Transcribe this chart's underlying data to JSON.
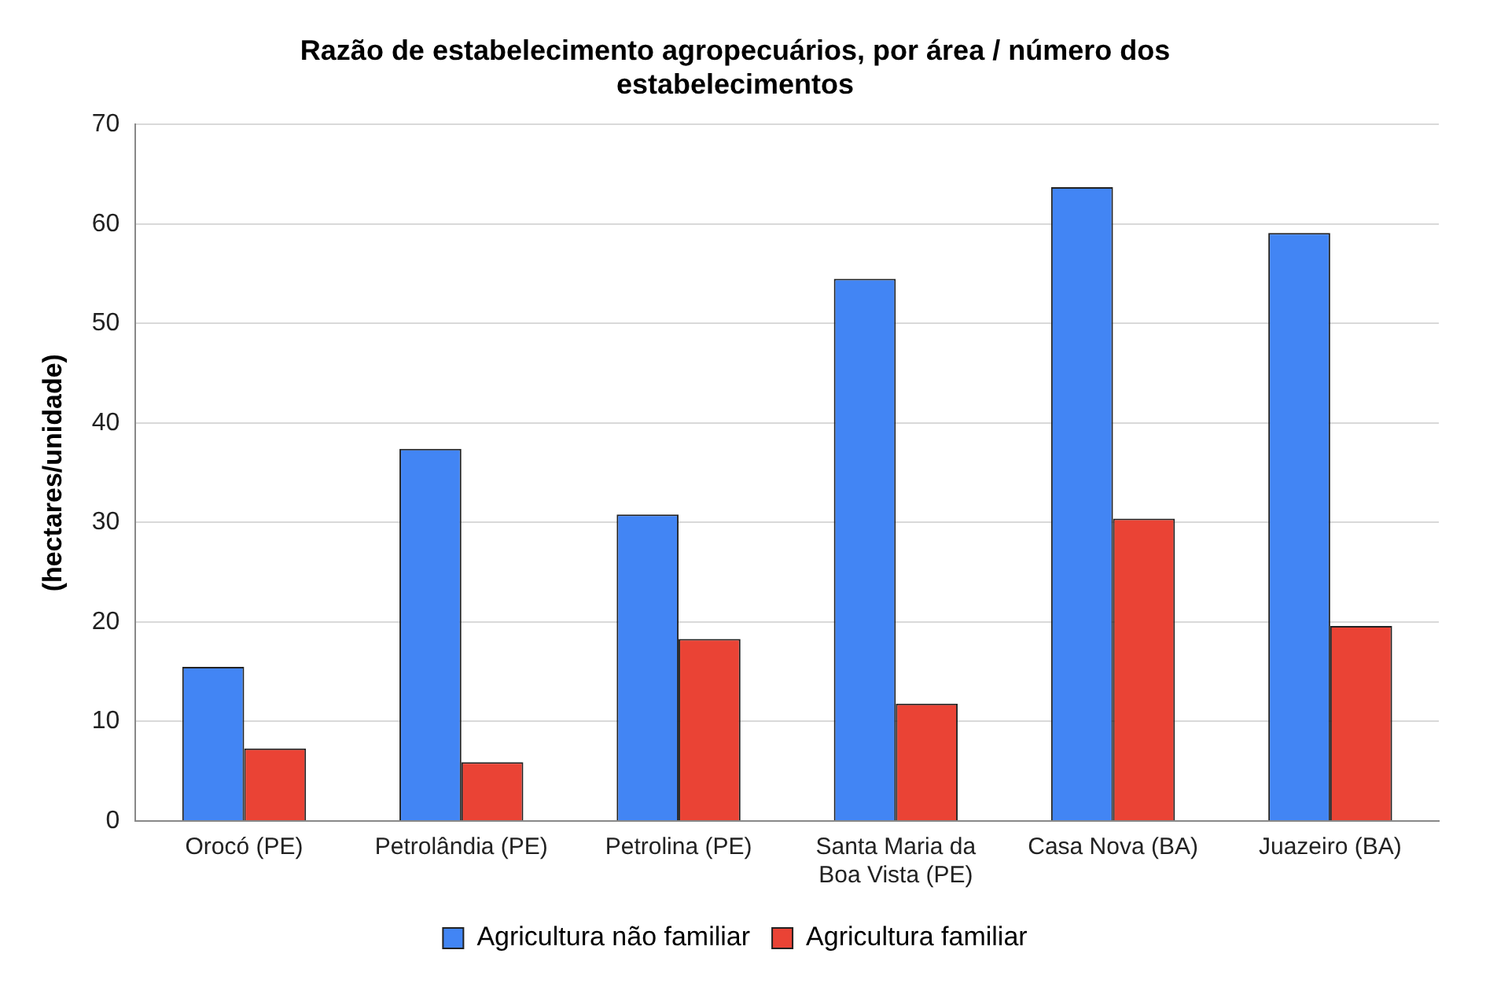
{
  "chart_data": {
    "type": "bar",
    "title": "Razão de estabelecimento agropecuários, por área / número dos estabelecimentos",
    "ylabel": "(hectares/unidade)",
    "categories": [
      "Orocó (PE)",
      "Petrolândia (PE)",
      "Petrolina (PE)",
      "Santa Maria da Boa Vista (PE)",
      "Casa Nova (BA)",
      "Juazeiro (BA)"
    ],
    "series": [
      {
        "name": "Agricultura não familiar",
        "color": "#4285f4",
        "values": [
          15.5,
          37.4,
          30.8,
          54.5,
          63.7,
          59.1
        ]
      },
      {
        "name": "Agricultura familiar",
        "color": "#ea4335",
        "values": [
          7.3,
          5.9,
          18.3,
          11.8,
          30.4,
          19.6
        ]
      }
    ],
    "ylim": [
      0,
      70
    ],
    "yticks": [
      0,
      10,
      20,
      30,
      40,
      50,
      60,
      70
    ],
    "grid": "y",
    "legend": "bottom"
  }
}
